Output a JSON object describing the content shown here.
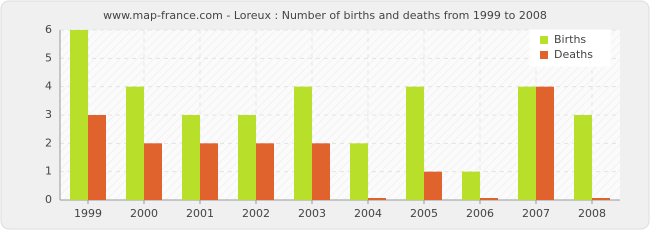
{
  "chart_data": {
    "type": "bar",
    "title": "www.map-france.com - Loreux : Number of births and deaths from 1999 to 2008",
    "categories": [
      "1999",
      "2000",
      "2001",
      "2002",
      "2003",
      "2004",
      "2005",
      "2006",
      "2007",
      "2008"
    ],
    "series": [
      {
        "name": "Births",
        "color": "#b8e02a",
        "values": [
          6,
          4,
          3,
          3,
          4,
          2,
          4,
          1,
          4,
          3
        ]
      },
      {
        "name": "Deaths",
        "color": "#e0622c",
        "values": [
          3,
          2,
          2,
          2,
          2,
          0,
          1,
          0,
          4,
          0
        ]
      }
    ],
    "ylim": [
      0,
      6
    ],
    "yticks": [
      0,
      1,
      2,
      3,
      4,
      5,
      6
    ],
    "grid": true,
    "legend": "top-right"
  }
}
